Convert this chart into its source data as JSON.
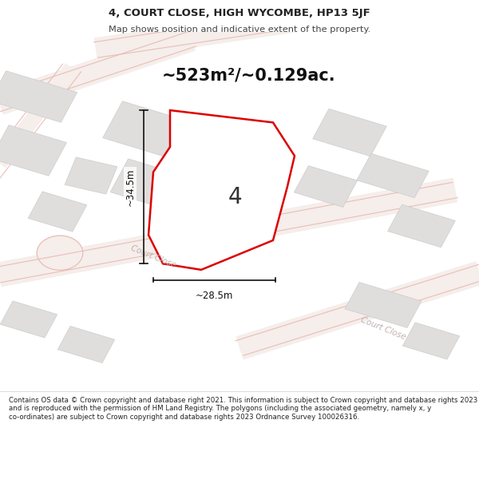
{
  "title_line1": "4, COURT CLOSE, HIGH WYCOMBE, HP13 5JF",
  "title_line2": "Map shows position and indicative extent of the property.",
  "area_text": "~523m²/~0.129ac.",
  "plot_number": "4",
  "dim_width": "~28.5m",
  "dim_height": "~34.5m",
  "road_label1": "Court Close",
  "road_label2": "Court Close",
  "footer_text": "Contains OS data © Crown copyright and database right 2021. This information is subject to Crown copyright and database rights 2023 and is reproduced with the permission of HM Land Registry. The polygons (including the associated geometry, namely x, y co-ordinates) are subject to Crown copyright and database rights 2023 Ordnance Survey 100026316.",
  "map_bg": "#ffffff",
  "road_fill_color": "#f5eeeb",
  "road_edge_color": "#e8b8b0",
  "building_color": "#e0dedd",
  "building_edge": "#cccccc",
  "plot_outline_color": "#dd0000",
  "plot_fill_color": "#ffffff",
  "footer_bg": "#ffffff",
  "dim_color": "#111111",
  "road_text_color": "#c0b0b0",
  "title_color": "#222222",
  "sub_title_color": "#444444"
}
